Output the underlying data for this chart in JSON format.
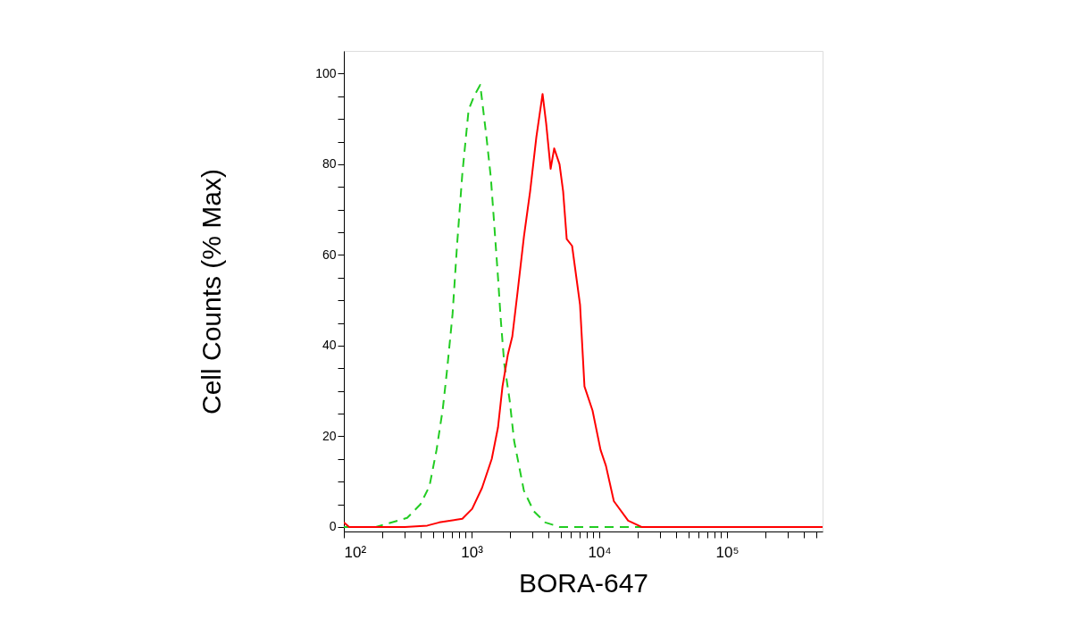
{
  "chart_data": {
    "type": "line",
    "xlabel": "BORA-647",
    "ylabel": "Cell Counts (% Max)",
    "log": "x",
    "xlim": [
      100,
      560000
    ],
    "ylim": [
      -1,
      105
    ],
    "xticks": [
      {
        "value": 100,
        "label": "10²"
      },
      {
        "value": 200,
        "label": null
      },
      {
        "value": 300,
        "label": null
      },
      {
        "value": 400,
        "label": null
      },
      {
        "value": 500,
        "label": null
      },
      {
        "value": 600,
        "label": null
      },
      {
        "value": 700,
        "label": null
      },
      {
        "value": 800,
        "label": null
      },
      {
        "value": 900,
        "label": null
      },
      {
        "value": 1000,
        "label": "10³"
      },
      {
        "value": 2000,
        "label": null
      },
      {
        "value": 3000,
        "label": null
      },
      {
        "value": 4000,
        "label": null
      },
      {
        "value": 5000,
        "label": null
      },
      {
        "value": 6000,
        "label": null
      },
      {
        "value": 7000,
        "label": null
      },
      {
        "value": 8000,
        "label": null
      },
      {
        "value": 9000,
        "label": null
      },
      {
        "value": 10000,
        "label": "10⁴"
      },
      {
        "value": 20000,
        "label": null
      },
      {
        "value": 30000,
        "label": null
      },
      {
        "value": 40000,
        "label": null
      },
      {
        "value": 50000,
        "label": null
      },
      {
        "value": 60000,
        "label": null
      },
      {
        "value": 70000,
        "label": null
      },
      {
        "value": 80000,
        "label": null
      },
      {
        "value": 90000,
        "label": null
      },
      {
        "value": 100000,
        "label": "10⁵"
      },
      {
        "value": 200000,
        "label": null
      },
      {
        "value": 300000,
        "label": null
      },
      {
        "value": 400000,
        "label": null
      },
      {
        "value": 500000,
        "label": null
      }
    ],
    "yticks": [
      0,
      {
        "value": 5,
        "label": null
      },
      {
        "value": 10,
        "label": null
      },
      {
        "value": 15,
        "label": null
      },
      20,
      {
        "value": 25,
        "label": null
      },
      {
        "value": 30,
        "label": null
      },
      {
        "value": 35,
        "label": null
      },
      40,
      {
        "value": 45,
        "label": null
      },
      {
        "value": 50,
        "label": null
      },
      {
        "value": 55,
        "label": null
      },
      60,
      {
        "value": 65,
        "label": null
      },
      {
        "value": 70,
        "label": null
      },
      {
        "value": 75,
        "label": null
      },
      80,
      {
        "value": 85,
        "label": null
      },
      {
        "value": 90,
        "label": null
      },
      {
        "value": 95,
        "label": null
      },
      100
    ],
    "series": [
      {
        "color": "#22cc22",
        "line_style": "dashed",
        "x": [
          100,
          178,
          313,
          398,
          468,
          532,
          595,
          645,
          710,
          769,
          847,
          948,
          1045,
          1169,
          1308,
          1416,
          1511,
          1611,
          1690,
          1803,
          1986,
          2153,
          2569,
          3065,
          3776,
          4883,
          560000
        ],
        "values": [
          0,
          0,
          2,
          5,
          9,
          17,
          26,
          35,
          47,
          62,
          78,
          92,
          95,
          97.5,
          86,
          77,
          66,
          55,
          46,
          36,
          28,
          19,
          8,
          3.5,
          1,
          0,
          0
        ]
      },
      {
        "color": "#ff0000",
        "line_style": "solid",
        "x": [
          100,
          110,
          300,
          450,
          558,
          847,
          1011,
          1207,
          1439,
          1611,
          1746,
          1923,
          2084,
          2296,
          2569,
          2873,
          3216,
          3597,
          3837,
          4159,
          4436,
          4883,
          5212,
          5559,
          6124,
          7068,
          7656,
          8851,
          10230,
          11270,
          13000,
          16830,
          21420,
          560000
        ],
        "values": [
          1,
          0,
          0,
          0.3,
          1,
          1.8,
          4,
          8.6,
          15,
          22,
          31,
          38,
          42,
          52,
          64,
          74,
          86,
          95.5,
          89,
          79,
          83.5,
          80,
          74,
          63.5,
          62,
          49,
          31,
          25.7,
          17,
          13.5,
          5.7,
          1.4,
          0,
          0
        ]
      }
    ]
  }
}
